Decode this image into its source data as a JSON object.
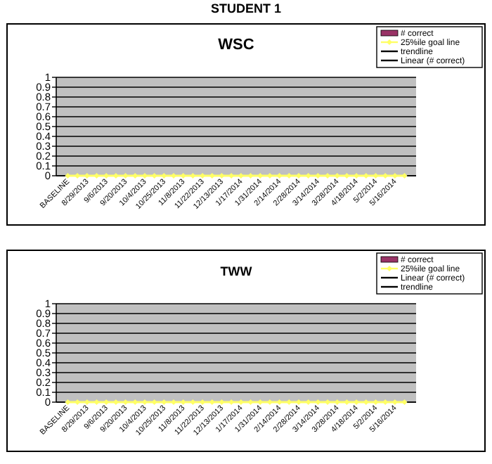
{
  "chart_data": [
    {
      "type": "bar",
      "title": "WSC",
      "annotations": [
        "STUDENT 1"
      ],
      "categories": [
        "BASELINE",
        null,
        "8/29/2013",
        null,
        "9/6/2013",
        null,
        "9/20/2013",
        null,
        "10/4/2013",
        null,
        "10/25/2013",
        null,
        "11/8/2013",
        null,
        "11/22/2013",
        null,
        "12/13/2013",
        null,
        "1/17/2014",
        null,
        "1/31/2014",
        null,
        "2/14/2014",
        null,
        "2/28/2014",
        null,
        "3/14/2014",
        null,
        "3/28/2014",
        null,
        "4/18/2014",
        null,
        "5/2/2014",
        null,
        "5/16/2014",
        null
      ],
      "series": [
        {
          "name": "# correct",
          "color": "#993366",
          "values": [
            null,
            null,
            null,
            null,
            null,
            null,
            null,
            null,
            null,
            null,
            null,
            null,
            null,
            null,
            null,
            null,
            null,
            null,
            null,
            null,
            null,
            null,
            null,
            null,
            null,
            null,
            null,
            null,
            null,
            null,
            null,
            null,
            null,
            null,
            null,
            null
          ]
        },
        {
          "name": "25%ile goal line",
          "type": "line",
          "marker": "diamond",
          "color": "#ffff66",
          "values": [
            0,
            0,
            0,
            0,
            0,
            0,
            0,
            0,
            0,
            0,
            0,
            0,
            0,
            0,
            0,
            0,
            0,
            0,
            0,
            0,
            0,
            0,
            0,
            0,
            0,
            0,
            0,
            0,
            0,
            0,
            0,
            0,
            0,
            0,
            0,
            0
          ]
        },
        {
          "name": "trendline",
          "type": "line",
          "color": "#000000",
          "values": [
            null,
            null,
            null,
            null,
            null,
            null,
            null,
            null,
            null,
            null,
            null,
            null,
            null,
            null,
            null,
            null,
            null,
            null,
            null,
            null,
            null,
            null,
            null,
            null,
            null,
            null,
            null,
            null,
            null,
            null,
            null,
            null,
            null,
            null,
            null,
            null
          ]
        },
        {
          "name": "Linear (# correct)",
          "type": "line",
          "color": "#000000",
          "values": [
            null,
            null,
            null,
            null,
            null,
            null,
            null,
            null,
            null,
            null,
            null,
            null,
            null,
            null,
            null,
            null,
            null,
            null,
            null,
            null,
            null,
            null,
            null,
            null,
            null,
            null,
            null,
            null,
            null,
            null,
            null,
            null,
            null,
            null,
            null,
            null
          ]
        }
      ],
      "ylim": [
        0,
        1
      ],
      "yticks": [
        0,
        0.1,
        0.2,
        0.3,
        0.4,
        0.5,
        0.6,
        0.7,
        0.8,
        0.9,
        1
      ],
      "grid": "y",
      "legend": "top right"
    },
    {
      "type": "bar",
      "title": "TWW",
      "categories": [
        "BASELINE",
        null,
        "8/29/2013",
        null,
        "9/6/2013",
        null,
        "9/20/2013",
        null,
        "10/4/2013",
        null,
        "10/25/2013",
        null,
        "11/8/2013",
        null,
        "11/22/2013",
        null,
        "12/13/2013",
        null,
        "1/17/2014",
        null,
        "1/31/2014",
        null,
        "2/14/2014",
        null,
        "2/28/2014",
        null,
        "3/14/2014",
        null,
        "3/28/2014",
        null,
        "4/18/2014",
        null,
        "5/2/2014",
        null,
        "5/16/2014",
        null
      ],
      "series": [
        {
          "name": "# correct",
          "color": "#993366",
          "values": [
            null,
            null,
            null,
            null,
            null,
            null,
            null,
            null,
            null,
            null,
            null,
            null,
            null,
            null,
            null,
            null,
            null,
            null,
            null,
            null,
            null,
            null,
            null,
            null,
            null,
            null,
            null,
            null,
            null,
            null,
            null,
            null,
            null,
            null,
            null,
            null
          ]
        },
        {
          "name": "25%ile goal line",
          "type": "line",
          "marker": "diamond",
          "color": "#ffff66",
          "values": [
            0,
            0,
            0,
            0,
            0,
            0,
            0,
            0,
            0,
            0,
            0,
            0,
            0,
            0,
            0,
            0,
            0,
            0,
            0,
            0,
            0,
            0,
            0,
            0,
            0,
            0,
            0,
            0,
            0,
            0,
            0,
            0,
            0,
            0,
            0,
            0
          ]
        },
        {
          "name": "Linear (# correct)",
          "type": "line",
          "color": "#000000",
          "values": [
            null,
            null,
            null,
            null,
            null,
            null,
            null,
            null,
            null,
            null,
            null,
            null,
            null,
            null,
            null,
            null,
            null,
            null,
            null,
            null,
            null,
            null,
            null,
            null,
            null,
            null,
            null,
            null,
            null,
            null,
            null,
            null,
            null,
            null,
            null,
            null
          ]
        },
        {
          "name": "trendline",
          "type": "line",
          "color": "#000000",
          "values": [
            null,
            null,
            null,
            null,
            null,
            null,
            null,
            null,
            null,
            null,
            null,
            null,
            null,
            null,
            null,
            null,
            null,
            null,
            null,
            null,
            null,
            null,
            null,
            null,
            null,
            null,
            null,
            null,
            null,
            null,
            null,
            null,
            null,
            null,
            null,
            null
          ]
        }
      ],
      "ylim": [
        0,
        1
      ],
      "yticks": [
        0,
        0.1,
        0.2,
        0.3,
        0.4,
        0.5,
        0.6,
        0.7,
        0.8,
        0.9,
        1
      ],
      "grid": "y",
      "legend": "top right"
    }
  ]
}
